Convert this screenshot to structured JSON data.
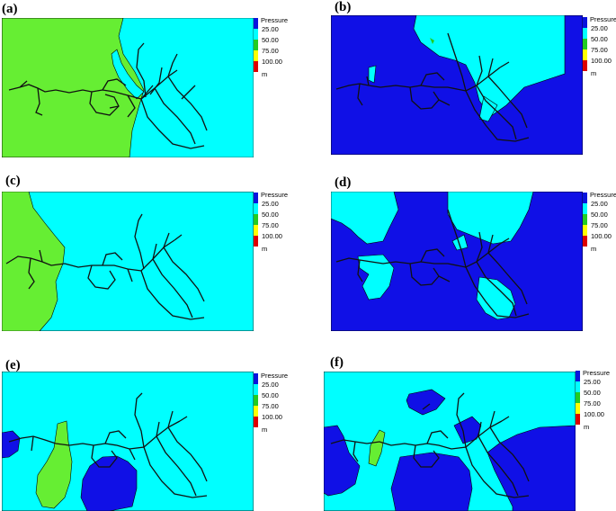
{
  "legend": {
    "title": "Pressure",
    "ticks": [
      "25.00",
      "50.00",
      "75.00",
      "100.00"
    ],
    "unit": "m",
    "colors": [
      "#0a14dc",
      "#00ffff",
      "#22cc22",
      "#ffff00",
      "#dd0000"
    ]
  },
  "colors": {
    "cyan": "#00ffff",
    "blue": "#1010e6",
    "green": "#66ee33",
    "pipe": "#111111"
  },
  "panels": [
    {
      "label": "(a)"
    },
    {
      "label": "(b)"
    },
    {
      "label": "(c)"
    },
    {
      "label": "(d)"
    },
    {
      "label": "(e)"
    },
    {
      "label": "(f)"
    }
  ]
}
